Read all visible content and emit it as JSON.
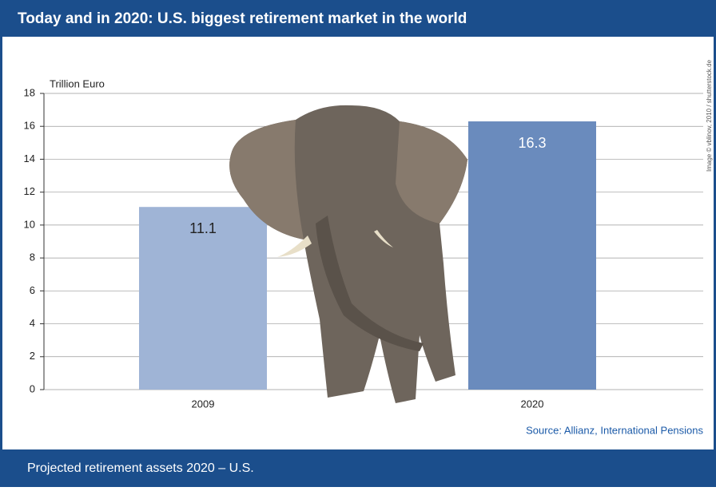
{
  "chart_data": {
    "type": "bar",
    "title": "Today and in 2020: U.S. biggest retirement market in the world",
    "footer": "Projected retirement assets 2020 – U.S.",
    "y_label": "Trillion Euro",
    "source": "Source: Allianz, International Pensions",
    "credit": "Image © vblinov, 2010 / shutterstock.de",
    "categories": [
      "2009",
      "2020"
    ],
    "values": [
      11.1,
      16.3
    ],
    "colors": [
      "#9fb4d6",
      "#6a8bbd"
    ],
    "value_label_colors": [
      "#222222",
      "#ffffff"
    ],
    "ylim": [
      0,
      18
    ],
    "yticks": [
      0,
      2,
      4,
      6,
      8,
      10,
      12,
      14,
      16,
      18
    ],
    "grid": true
  }
}
